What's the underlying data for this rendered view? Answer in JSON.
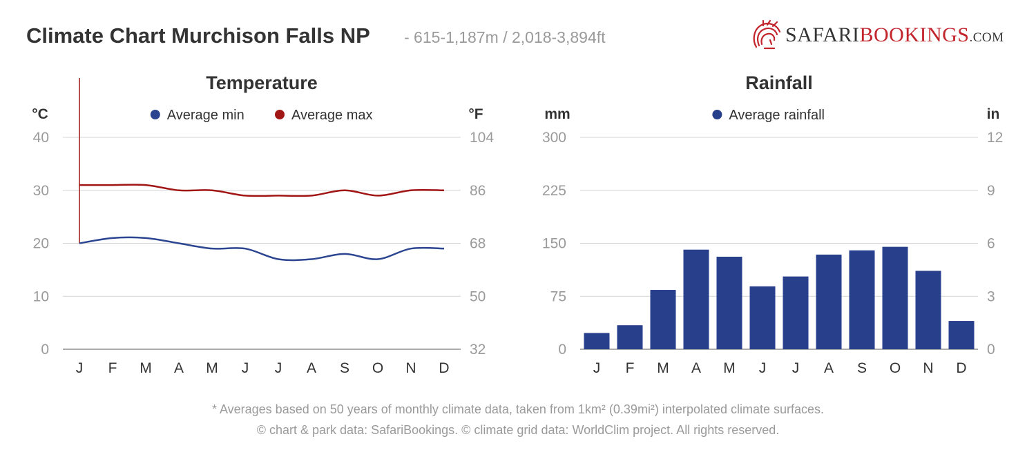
{
  "header": {
    "title": "Climate Chart Murchison Falls NP",
    "elevation": "- 615-1,187m / 2,018-3,894ft",
    "brand_name_1": "SAFARI",
    "brand_name_2": "BOOKINGS",
    "brand_name_3": ".COM"
  },
  "footer": {
    "note": "* Averages based on 50 years of monthly climate data, taken from 1km² (0.39mi²) interpolated climate surfaces.",
    "copyright": "© chart & park data: SafariBookings. © climate grid data: WorldClim project. All rights reserved."
  },
  "colors": {
    "min": "#2b4590",
    "max": "#a11515",
    "bar": "#283f8b",
    "grid": "#d4d4d4",
    "text": "#333333",
    "muted": "#9a9a9a",
    "brand": "#c2252c"
  },
  "chart_data": [
    {
      "type": "line",
      "title": "Temperature",
      "y_left_label": "°C",
      "y_right_label": "°F",
      "categories": [
        "J",
        "F",
        "M",
        "A",
        "M",
        "J",
        "J",
        "A",
        "S",
        "O",
        "N",
        "D"
      ],
      "ylim": [
        0,
        40
      ],
      "y_ticks": [
        0,
        10,
        20,
        30,
        40
      ],
      "y_right_ticks": [
        32,
        50,
        68,
        86,
        104
      ],
      "grid": true,
      "legend_position": "top-center",
      "series": [
        {
          "name": "Average min",
          "color": "#2b4590",
          "values": [
            20,
            21,
            21,
            20,
            19,
            19,
            17,
            17,
            18,
            17,
            19,
            19
          ]
        },
        {
          "name": "Average max",
          "color": "#a11515",
          "values": [
            31,
            31,
            31,
            30,
            30,
            29,
            29,
            29,
            30,
            29,
            30,
            30
          ]
        }
      ]
    },
    {
      "type": "bar",
      "title": "Rainfall",
      "y_left_label": "mm",
      "y_right_label": "in",
      "categories": [
        "J",
        "F",
        "M",
        "A",
        "M",
        "J",
        "J",
        "A",
        "S",
        "O",
        "N",
        "D"
      ],
      "ylim": [
        0,
        300
      ],
      "y_ticks": [
        0,
        75,
        150,
        225,
        300
      ],
      "y_right_ticks": [
        0,
        3,
        6,
        9,
        12
      ],
      "grid": true,
      "legend_position": "top-center",
      "series": [
        {
          "name": "Average rainfall",
          "color": "#283f8b",
          "values": [
            23,
            34,
            84,
            141,
            131,
            89,
            103,
            134,
            140,
            145,
            111,
            40
          ]
        }
      ]
    }
  ]
}
